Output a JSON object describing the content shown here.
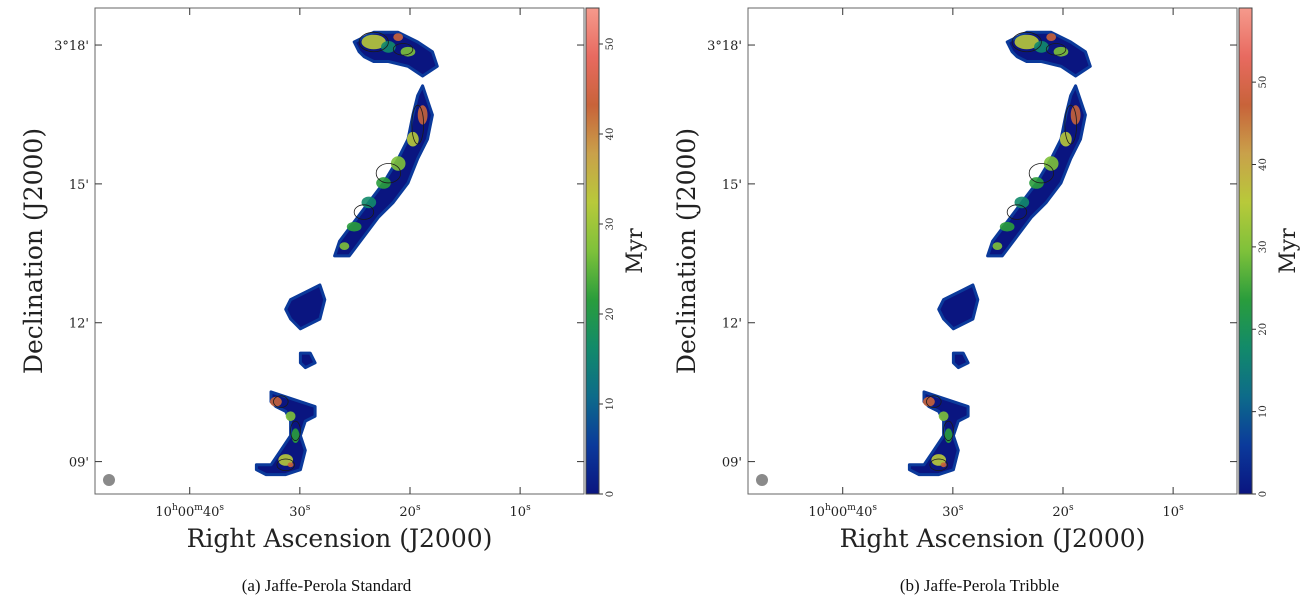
{
  "colors": {
    "colormap": [
      "#0a1580",
      "#0b3a9b",
      "#0d6b8a",
      "#128a6a",
      "#2a9d3c",
      "#7ec13a",
      "#b8c93a",
      "#c9a14a",
      "#c8633a",
      "#e86a60",
      "#f59a8c"
    ],
    "frame": "#666666",
    "source_marker": "#8a8a8a",
    "contour": "#1a1a1a"
  },
  "panels": [
    {
      "caption": "(a) Jaffe-Perola Standard",
      "chart_data": {
        "type": "heatmap",
        "title": "",
        "xlabel": "Right Ascension (J2000)",
        "ylabel": "Declination (J2000)",
        "x_ticks": [
          {
            "label": "10h00m40s",
            "h": "10",
            "hu": "h",
            "m": "00",
            "mu": "m",
            "s": "40",
            "su": "s",
            "value": 40
          },
          {
            "label": "30s",
            "s": "30",
            "su": "s",
            "value": 30
          },
          {
            "label": "20s",
            "s": "20",
            "su": "s",
            "value": 20
          },
          {
            "label": "10s",
            "s": "10",
            "su": "s",
            "value": 10
          }
        ],
        "y_ticks": [
          {
            "label": "3°18'",
            "value": 18
          },
          {
            "label": "15'",
            "value": 15
          },
          {
            "label": "12'",
            "value": 12
          },
          {
            "label": "09'",
            "value": 9
          }
        ],
        "xlim": [
          48.6,
          4.2
        ],
        "ylim": [
          8.3,
          18.8
        ],
        "colorbar": {
          "label": "Myr",
          "min": 0,
          "max": 54,
          "ticks": [
            0,
            10,
            20,
            30,
            40,
            50
          ]
        },
        "source_shape": "long curved tail (hook at top, fragmented lower segments), ages mostly 0–10 Myr with 20–45 Myr patches"
      }
    },
    {
      "caption": "(b) Jaffe-Perola Tribble",
      "chart_data": {
        "type": "heatmap",
        "title": "",
        "xlabel": "Right Ascension (J2000)",
        "ylabel": "Declination (J2000)",
        "x_ticks": [
          {
            "label": "10h00m40s",
            "h": "10",
            "hu": "h",
            "m": "00",
            "mu": "m",
            "s": "40",
            "su": "s",
            "value": 40
          },
          {
            "label": "30s",
            "s": "30",
            "su": "s",
            "value": 30
          },
          {
            "label": "20s",
            "s": "20",
            "su": "s",
            "value": 20
          },
          {
            "label": "10s",
            "s": "10",
            "su": "s",
            "value": 10
          }
        ],
        "y_ticks": [
          {
            "label": "3°18'",
            "value": 18
          },
          {
            "label": "15'",
            "value": 15
          },
          {
            "label": "12'",
            "value": 12
          },
          {
            "label": "09'",
            "value": 9
          }
        ],
        "xlim": [
          48.6,
          4.2
        ],
        "ylim": [
          8.3,
          18.8
        ],
        "colorbar": {
          "label": "Myr",
          "min": 0,
          "max": 59,
          "ticks": [
            0,
            10,
            20,
            30,
            40,
            50
          ]
        },
        "source_shape": "same tail morphology, slightly older peak ages up to ~55 Myr"
      }
    }
  ]
}
